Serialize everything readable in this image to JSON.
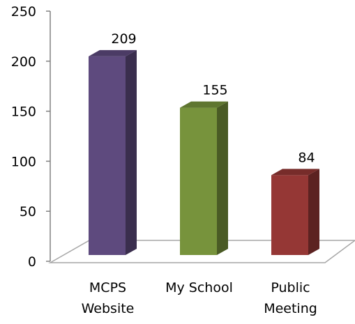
{
  "chart_data": {
    "type": "bar",
    "style": "3d-column",
    "categories": [
      [
        "MCPS",
        "Website"
      ],
      [
        "My School"
      ],
      [
        "Public",
        "Meeting"
      ]
    ],
    "values": [
      209,
      155,
      84
    ],
    "data_labels": [
      "209",
      "155",
      "84"
    ],
    "colors": [
      "#5e4a7e",
      "#77933c",
      "#953735"
    ],
    "y_ticks": [
      "0",
      "50",
      "100",
      "150",
      "200",
      "250"
    ],
    "ylim": [
      0,
      250
    ],
    "title": "",
    "xlabel": "",
    "ylabel": "",
    "grid": false,
    "legend": "none"
  }
}
